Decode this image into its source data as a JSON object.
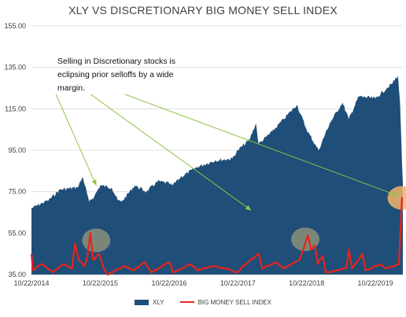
{
  "chart_data": {
    "type": "area",
    "title": "XLY VS DISCRETIONARY BIG MONEY SELL INDEX",
    "xlabel": "",
    "ylabel": "",
    "ylim": [
      35,
      155
    ],
    "yticks": [
      "35.00",
      "55.00",
      "75.00",
      "95.00",
      "115.00",
      "135.00",
      "155.00"
    ],
    "xticks": [
      "10/22/2014",
      "10/22/2015",
      "10/22/2016",
      "10/22/2017",
      "10/22/2018",
      "10/22/2019"
    ],
    "grid": "horizontal",
    "legend_position": "bottom",
    "annotation": "Selling in Discretionary stocks is eclipsing prior selloffs by a wide margin.",
    "colors": {
      "xly": "#1f4e79",
      "sell_index": "#e8231b",
      "highlight": "#9a9a7a",
      "highlight_last": "#f2b36b",
      "arrow": "#8dc63f"
    },
    "series": [
      {
        "name": "XLY",
        "style": "area",
        "points": [
          [
            "10/22/2014",
            67
          ],
          [
            "01/22/2015",
            71
          ],
          [
            "03/22/2015",
            76
          ],
          [
            "06/22/2015",
            77
          ],
          [
            "07/22/2015",
            82
          ],
          [
            "08/24/2015",
            70
          ],
          [
            "09/22/2015",
            73
          ],
          [
            "10/22/2015",
            78
          ],
          [
            "12/22/2015",
            77
          ],
          [
            "01/22/2016",
            71
          ],
          [
            "02/11/2016",
            70
          ],
          [
            "04/22/2016",
            78
          ],
          [
            "06/24/2016",
            75
          ],
          [
            "08/22/2016",
            80
          ],
          [
            "10/22/2016",
            79
          ],
          [
            "11/08/2016",
            78
          ],
          [
            "12/22/2016",
            82
          ],
          [
            "03/22/2017",
            87
          ],
          [
            "06/22/2017",
            90
          ],
          [
            "09/22/2017",
            91
          ],
          [
            "10/22/2017",
            95
          ],
          [
            "12/22/2017",
            100
          ],
          [
            "01/26/2018",
            108
          ],
          [
            "02/09/2018",
            98
          ],
          [
            "04/22/2018",
            104
          ],
          [
            "06/22/2018",
            110
          ],
          [
            "08/31/2018",
            117
          ],
          [
            "10/22/2018",
            105
          ],
          [
            "12/24/2018",
            95
          ],
          [
            "02/22/2019",
            108
          ],
          [
            "04/30/2019",
            118
          ],
          [
            "06/03/2019",
            110
          ],
          [
            "07/26/2019",
            121
          ],
          [
            "10/22/2019",
            120
          ],
          [
            "12/22/2019",
            125
          ],
          [
            "01/17/2020",
            127
          ],
          [
            "02/19/2020",
            131
          ],
          [
            "03/01/2020",
            118
          ],
          [
            "03/12/2020",
            88
          ],
          [
            "03/16/2020",
            79
          ]
        ]
      },
      {
        "name": "BIG MONEY SELL INDEX",
        "style": "line",
        "points": [
          [
            "10/22/2014",
            45
          ],
          [
            "10/29/2014",
            37
          ],
          [
            "12/15/2014",
            40
          ],
          [
            "02/15/2015",
            36
          ],
          [
            "04/10/2015",
            40
          ],
          [
            "05/25/2015",
            38
          ],
          [
            "06/10/2015",
            50
          ],
          [
            "07/01/2015",
            42
          ],
          [
            "08/01/2015",
            39
          ],
          [
            "08/15/2015",
            44
          ],
          [
            "08/31/2015",
            55
          ],
          [
            "09/15/2015",
            42
          ],
          [
            "10/15/2015",
            45
          ],
          [
            "11/10/2015",
            38
          ],
          [
            "11/30/2015",
            35
          ],
          [
            "03/01/2016",
            39
          ],
          [
            "04/15/2016",
            37
          ],
          [
            "06/15/2016",
            41
          ],
          [
            "07/20/2016",
            36
          ],
          [
            "09/15/2016",
            39
          ],
          [
            "10/22/2016",
            41
          ],
          [
            "11/15/2016",
            36
          ],
          [
            "02/15/2017",
            40
          ],
          [
            "03/20/2017",
            37
          ],
          [
            "06/15/2017",
            39
          ],
          [
            "08/20/2017",
            38
          ],
          [
            "10/15/2017",
            36
          ],
          [
            "12/15/2017",
            41
          ],
          [
            "02/10/2018",
            45
          ],
          [
            "03/01/2018",
            38
          ],
          [
            "05/15/2018",
            41
          ],
          [
            "06/22/2018",
            38
          ],
          [
            "09/15/2018",
            42
          ],
          [
            "10/05/2018",
            47
          ],
          [
            "10/28/2018",
            54
          ],
          [
            "11/15/2018",
            47
          ],
          [
            "12/05/2018",
            49
          ],
          [
            "12/20/2018",
            40
          ],
          [
            "01/15/2019",
            44
          ],
          [
            "02/01/2019",
            36
          ],
          [
            "04/01/2019",
            37
          ],
          [
            "05/20/2019",
            38
          ],
          [
            "06/03/2019",
            47
          ],
          [
            "06/20/2019",
            38
          ],
          [
            "08/15/2019",
            45
          ],
          [
            "09/01/2019",
            37
          ],
          [
            "11/15/2019",
            40
          ],
          [
            "12/15/2019",
            38
          ],
          [
            "02/01/2020",
            39
          ],
          [
            "02/24/2020",
            40
          ],
          [
            "03/05/2020",
            60
          ],
          [
            "03/12/2020",
            72
          ],
          [
            "03/16/2020",
            72
          ]
        ]
      }
    ],
    "highlights": [
      {
        "date": "10/01/2015",
        "value": 51.5,
        "kind": "past"
      },
      {
        "date": "10/15/2018",
        "value": 52,
        "kind": "past"
      },
      {
        "date": "03/10/2020",
        "value": 72,
        "kind": "current"
      }
    ],
    "arrows": [
      {
        "from": [
          "03/01/2015",
          122
        ],
        "to": [
          "10/01/2015",
          78
        ]
      },
      {
        "from": [
          "09/01/2015",
          122
        ],
        "to": [
          "12/31/2017",
          66
        ]
      },
      {
        "from": [
          "03/01/2016",
          122
        ],
        "to": [
          "02/20/2020",
          73
        ]
      }
    ]
  }
}
